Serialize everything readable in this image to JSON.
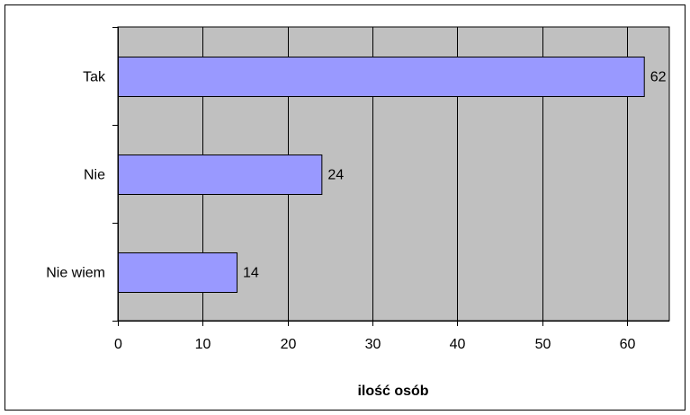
{
  "chart_data": {
    "type": "bar",
    "orientation": "horizontal",
    "categories": [
      "Tak",
      "Nie",
      "Nie wiem"
    ],
    "values": [
      62,
      24,
      14
    ],
    "title": "",
    "xlabel": "ilość osób",
    "ylabel": "",
    "xlim": [
      0,
      65
    ],
    "xticks": [
      0,
      10,
      20,
      30,
      40,
      50,
      60
    ],
    "grid": "vertical",
    "legend": "none",
    "colors": {
      "bar": "#9999ff",
      "plot_background": "#c0c0c0",
      "grid": "#000000",
      "border": "#000000"
    }
  }
}
